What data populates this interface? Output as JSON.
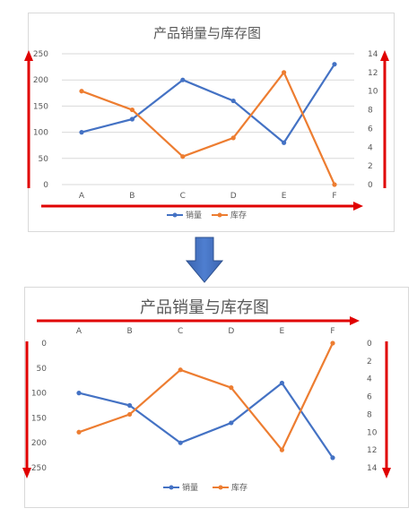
{
  "chart_data": [
    {
      "type": "line",
      "title": "产品销量与库存图",
      "categories": [
        "A",
        "B",
        "C",
        "D",
        "E",
        "F"
      ],
      "series": [
        {
          "name": "销量",
          "axis": "left",
          "color": "#4472C4",
          "values": [
            100,
            125,
            200,
            160,
            80,
            230
          ]
        },
        {
          "name": "库存",
          "axis": "right",
          "color": "#ED7D31",
          "values": [
            10,
            8,
            3,
            5,
            12,
            0
          ]
        }
      ],
      "y_left": {
        "ticks": [
          "0",
          "50",
          "100",
          "150",
          "200",
          "250"
        ],
        "ylim": [
          0,
          250
        ],
        "reversed": false
      },
      "y_right": {
        "ticks": [
          "0",
          "2",
          "4",
          "6",
          "8",
          "10",
          "12",
          "14"
        ],
        "ylim": [
          0,
          14
        ],
        "reversed": false
      },
      "x_axis_position": "bottom",
      "grid": true,
      "legend": "bottom"
    },
    {
      "type": "line",
      "title": "产品销量与库存图",
      "categories": [
        "A",
        "B",
        "C",
        "D",
        "E",
        "F"
      ],
      "series": [
        {
          "name": "销量",
          "axis": "left",
          "color": "#4472C4",
          "values": [
            100,
            125,
            200,
            160,
            80,
            230
          ]
        },
        {
          "name": "库存",
          "axis": "right",
          "color": "#ED7D31",
          "values": [
            10,
            8,
            3,
            5,
            12,
            0
          ]
        }
      ],
      "y_left": {
        "ticks": [
          "0",
          "50",
          "100",
          "150",
          "200",
          "250"
        ],
        "ylim": [
          0,
          250
        ],
        "reversed": true
      },
      "y_right": {
        "ticks": [
          "0",
          "2",
          "4",
          "6",
          "8",
          "10",
          "12",
          "14"
        ],
        "ylim": [
          0,
          14
        ],
        "reversed": true
      },
      "x_axis_position": "top",
      "grid": false,
      "legend": "bottom"
    }
  ],
  "colors": {
    "arrow_red": "#E00000",
    "down_arrow_blue": "#4472C4"
  }
}
